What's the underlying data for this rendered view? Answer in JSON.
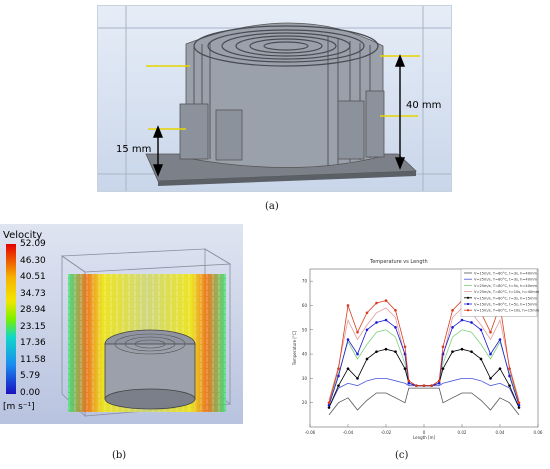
{
  "panel_a": {
    "caption": "(a)",
    "dim_40": "40 mm",
    "dim_15": "15 mm"
  },
  "panel_b": {
    "caption": "(b)",
    "legend_title": "Velocity",
    "legend_unit": "[m s⁻¹]",
    "ticks": [
      "52.09",
      "46.30",
      "40.51",
      "34.73",
      "28.94",
      "23.15",
      "17.36",
      "11.58",
      "5.79",
      "0.00"
    ],
    "colors": [
      "#e40000",
      "#f26a00",
      "#f7b000",
      "#f2e600",
      "#b8f000",
      "#33e070",
      "#10d8c8",
      "#1a8ff0",
      "#1a3cf0",
      "#1a10c0"
    ]
  },
  "panel_c": {
    "caption": "(c)",
    "chart_data": {
      "type": "line",
      "title": "Temperature vs Length",
      "xlabel": "Length [m]",
      "ylabel": "Temperature [°C]",
      "xlim": [
        -0.06,
        0.06
      ],
      "ylim": [
        10,
        75
      ],
      "xticks": [
        "-0.06",
        "-0.04",
        "-0.02",
        "0",
        "0.02",
        "0.04",
        "0.06"
      ],
      "yticks": [
        "20",
        "30",
        "40",
        "50",
        "60",
        "70"
      ],
      "legend_position": "top-right",
      "series": [
        {
          "name": "V=15m/s, T=80°C, t=3s, h=40mm",
          "color": "#555555",
          "marker": "none",
          "x": [
            -0.05,
            -0.045,
            -0.04,
            -0.035,
            -0.03,
            -0.025,
            -0.02,
            -0.015,
            -0.01,
            -0.008,
            -0.004,
            0,
            0.004,
            0.008,
            0.01,
            0.015,
            0.02,
            0.025,
            0.03,
            0.035,
            0.04,
            0.045,
            0.05
          ],
          "y": [
            15,
            20,
            22,
            17,
            21,
            24,
            24,
            22,
            20,
            26,
            26,
            26,
            26,
            26,
            20,
            22,
            24,
            24,
            21,
            17,
            22,
            20,
            15
          ]
        },
        {
          "name": "V=25m/s, T=80°C, t=3s, h=40mm",
          "color": "#4a55d8",
          "marker": "none",
          "x": [
            -0.05,
            -0.045,
            -0.04,
            -0.035,
            -0.03,
            -0.025,
            -0.02,
            -0.015,
            -0.01,
            -0.008,
            -0.004,
            0,
            0.004,
            0.008,
            0.01,
            0.015,
            0.02,
            0.025,
            0.03,
            0.035,
            0.04,
            0.045,
            0.05
          ],
          "y": [
            18,
            26,
            28,
            27,
            29,
            30,
            30,
            29,
            28,
            27,
            27,
            27,
            27,
            27,
            28,
            29,
            30,
            30,
            29,
            27,
            28,
            26,
            18
          ]
        },
        {
          "name": "V=25m/s, T=80°C, t=5s, h=40mm",
          "color": "#7ed07e",
          "marker": "none",
          "x": [
            -0.05,
            -0.045,
            -0.04,
            -0.035,
            -0.03,
            -0.025,
            -0.02,
            -0.015,
            -0.01,
            -0.008,
            -0.004,
            0,
            0.004,
            0.008,
            0.01,
            0.015,
            0.02,
            0.025,
            0.03,
            0.035,
            0.04,
            0.045,
            0.05
          ],
          "y": [
            20,
            32,
            45,
            38,
            44,
            49,
            50,
            47,
            36,
            28,
            27,
            27,
            27,
            28,
            36,
            47,
            50,
            49,
            44,
            38,
            45,
            32,
            20
          ]
        },
        {
          "name": "V=25m/s, T=80°C, t=10s, h=40mm",
          "color": "#e89898",
          "marker": "none",
          "x": [
            -0.05,
            -0.045,
            -0.04,
            -0.035,
            -0.03,
            -0.025,
            -0.02,
            -0.015,
            -0.01,
            -0.008,
            -0.004,
            0,
            0.004,
            0.008,
            0.01,
            0.015,
            0.02,
            0.025,
            0.03,
            0.035,
            0.04,
            0.045,
            0.05
          ],
          "y": [
            21,
            35,
            54,
            46,
            52,
            57,
            59,
            55,
            39,
            29,
            27,
            27,
            27,
            29,
            39,
            55,
            59,
            57,
            52,
            46,
            54,
            35,
            21
          ]
        },
        {
          "name": "V=15m/s, T=80°C, t=3s, h=15mm",
          "color": "#000000",
          "marker": "circle",
          "x": [
            -0.05,
            -0.045,
            -0.04,
            -0.035,
            -0.03,
            -0.025,
            -0.02,
            -0.015,
            -0.01,
            -0.008,
            -0.004,
            0,
            0.004,
            0.008,
            0.01,
            0.015,
            0.02,
            0.025,
            0.03,
            0.035,
            0.04,
            0.045,
            0.05
          ],
          "y": [
            18,
            27,
            34,
            30,
            38,
            41,
            42,
            41,
            34,
            28,
            27,
            27,
            27,
            28,
            34,
            41,
            42,
            41,
            38,
            30,
            34,
            27,
            18
          ]
        },
        {
          "name": "V=15m/s, T=80°C, t=5s, h=15mm",
          "color": "#1a1ad8",
          "marker": "circle",
          "x": [
            -0.05,
            -0.045,
            -0.04,
            -0.035,
            -0.03,
            -0.025,
            -0.02,
            -0.015,
            -0.01,
            -0.008,
            -0.004,
            0,
            0.004,
            0.008,
            0.01,
            0.015,
            0.02,
            0.025,
            0.03,
            0.035,
            0.04,
            0.045,
            0.05
          ],
          "y": [
            19,
            31,
            46,
            40,
            50,
            53,
            54,
            51,
            40,
            28,
            27,
            27,
            27,
            28,
            40,
            51,
            54,
            53,
            50,
            40,
            46,
            31,
            19
          ]
        },
        {
          "name": "V=15m/s, T=80°C, t=10s, h=15mm",
          "color": "#d83a1a",
          "marker": "circle",
          "x": [
            -0.05,
            -0.045,
            -0.04,
            -0.035,
            -0.03,
            -0.025,
            -0.02,
            -0.015,
            -0.01,
            -0.008,
            -0.004,
            0,
            0.004,
            0.008,
            0.01,
            0.015,
            0.02,
            0.025,
            0.03,
            0.035,
            0.04,
            0.045,
            0.05
          ],
          "y": [
            20,
            34,
            60,
            49,
            57,
            61,
            62,
            58,
            43,
            29,
            27,
            27,
            27,
            29,
            43,
            58,
            62,
            61,
            57,
            49,
            60,
            34,
            20
          ]
        }
      ]
    }
  }
}
